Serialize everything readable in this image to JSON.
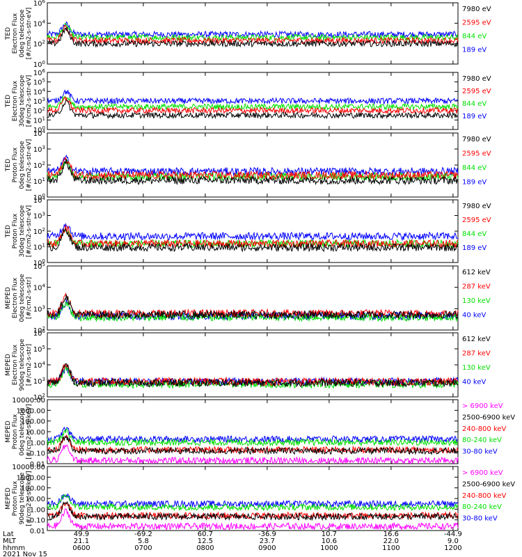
{
  "colors": {
    "blue": "#0000ff",
    "red": "#ff0000",
    "green": "#00e000",
    "black": "#000000",
    "magenta": "#ff00ff"
  },
  "chart_data": [
    {
      "type": "line",
      "ylabel": [
        "TED",
        "Electron Flux",
        "0deg telescope",
        "[#/cm2-s-str-eV]"
      ],
      "yscale": "log",
      "ylim": [
        1,
        1000000
      ],
      "ytick_labels": [
        "10^6",
        "10^4",
        "10^2",
        "10^0"
      ],
      "series": [
        {
          "name": "7980 eV",
          "color": "black",
          "level": 2
        },
        {
          "name": "2595 eV",
          "color": "red",
          "level": 2.3
        },
        {
          "name": "844 eV",
          "color": "green",
          "level": 2.6
        },
        {
          "name": "189 eV",
          "color": "blue",
          "level": 2.9
        }
      ]
    },
    {
      "type": "line",
      "ylabel": [
        "TED",
        "Electron Flux",
        "30deg telescope",
        "[#/cm2-s-str-eV]"
      ],
      "yscale": "log",
      "ylim": [
        1,
        1000000
      ],
      "ytick_labels": [
        "10^6",
        "10^5",
        "10^4",
        "10^3",
        "10^2",
        "10^1",
        "10^0"
      ],
      "series": [
        {
          "name": "7980 eV",
          "color": "black",
          "level": 1.5
        },
        {
          "name": "2595 eV",
          "color": "red",
          "level": 2
        },
        {
          "name": "844 eV",
          "color": "green",
          "level": 2.4
        },
        {
          "name": "189 eV",
          "color": "blue",
          "level": 3
        }
      ]
    },
    {
      "type": "line",
      "ylabel": [
        "TED",
        "Proton Flux",
        "0deg telescope",
        "[#/cm2-s-str-eV]"
      ],
      "yscale": "log",
      "ylim": [
        1,
        100000
      ],
      "ytick_labels": [
        "10^4",
        "10^3",
        "10^2",
        "10^1",
        "10^0"
      ],
      "series": [
        {
          "name": "7980 eV",
          "color": "black",
          "level": 1.3
        },
        {
          "name": "2595 eV",
          "color": "red",
          "level": 1.7
        },
        {
          "name": "844 eV",
          "color": "green",
          "level": 1.6
        },
        {
          "name": "189 eV",
          "color": "blue",
          "level": 2
        }
      ]
    },
    {
      "type": "line",
      "ylabel": [
        "TED",
        "Proton Flux",
        "30deg telescope",
        "[#/cm2-s-str-eV]"
      ],
      "yscale": "log",
      "ylim": [
        1,
        100000
      ],
      "ytick_labels": [
        "10^4",
        "10^3",
        "10^2",
        "10^1",
        "10^0"
      ],
      "series": [
        {
          "name": "7980 eV",
          "color": "black",
          "level": 1.2
        },
        {
          "name": "2595 eV",
          "color": "red",
          "level": 1.5
        },
        {
          "name": "844 eV",
          "color": "green",
          "level": 1.5
        },
        {
          "name": "189 eV",
          "color": "blue",
          "level": 2.1
        }
      ]
    },
    {
      "type": "line",
      "ylabel": [
        "MEPED",
        "Electron Flux",
        "0deg telescope",
        "[#/cm2-s-str]"
      ],
      "yscale": "log",
      "ylim": [
        10,
        1000000
      ],
      "ytick_labels": [
        "10^5",
        "10^4",
        "10^3",
        "10^2"
      ],
      "series": [
        {
          "name": "612 keV",
          "color": "black",
          "level": 2.2
        },
        {
          "name": "287 keV",
          "color": "red",
          "level": 2.3
        },
        {
          "name": "130 keV",
          "color": "green",
          "level": 2
        },
        {
          "name": "40 keV",
          "color": "blue",
          "level": 2.1
        }
      ]
    },
    {
      "type": "line",
      "ylabel": [
        "MEPED",
        "Electron Flux",
        "90deg telescope",
        "[#/cm2-s-str]"
      ],
      "yscale": "log",
      "ylim": [
        10,
        1000000
      ],
      "ytick_labels": [
        "10^6",
        "10^5",
        "10^4",
        "10^3",
        "10^2"
      ],
      "series": [
        {
          "name": "612 keV",
          "color": "black",
          "level": 2.1
        },
        {
          "name": "287 keV",
          "color": "red",
          "level": 2.2
        },
        {
          "name": "130 keV",
          "color": "green",
          "level": 2
        },
        {
          "name": "40 keV",
          "color": "blue",
          "level": 2.2
        }
      ]
    },
    {
      "type": "line",
      "ylabel": [
        "MEPED",
        "Proton Flux",
        "0deg telescope",
        "[#/cm2-s-str-keV]"
      ],
      "yscale": "log",
      "ylim": [
        0.01,
        10000
      ],
      "ytick_labels": [
        "10000.00",
        "1000.00",
        "100.00",
        "10.00",
        "1.00",
        "0.10",
        "0.01"
      ],
      "series": [
        {
          "name": "> 6900 keV",
          "color": "magenta",
          "level": -1.7
        },
        {
          "name": "2500-6900 keV",
          "color": "black",
          "level": -0.8
        },
        {
          "name": "240-800 keV",
          "color": "red",
          "level": -0.7
        },
        {
          "name": "80-240 keV",
          "color": "green",
          "level": 0
        },
        {
          "name": "30-80 keV",
          "color": "blue",
          "level": 0.3
        }
      ]
    },
    {
      "type": "line",
      "ylabel": [
        "MEPED",
        "Proton Flux",
        "90deg telescope",
        "[#/cm2-s-str-keV]"
      ],
      "yscale": "log",
      "ylim": [
        0.01,
        10000
      ],
      "ytick_labels": [
        "10000.00",
        "1000.00",
        "100.00",
        "10.00",
        "1.00",
        "0.10",
        "0.01"
      ],
      "series": [
        {
          "name": "> 6900 keV",
          "color": "magenta",
          "level": -1.6
        },
        {
          "name": "2500-6900 keV",
          "color": "black",
          "level": -0.7
        },
        {
          "name": "240-800 keV",
          "color": "red",
          "level": -0.6
        },
        {
          "name": "80-240 keV",
          "color": "green",
          "level": 0.2
        },
        {
          "name": "30-80 keV",
          "color": "blue",
          "level": 0.5
        }
      ]
    }
  ],
  "x_axis": {
    "row_labels": [
      "Lat",
      "MLT",
      "hhmm"
    ],
    "ticks": [
      {
        "lat": "49.9",
        "mlt": "21.1",
        "hhmm": "0600"
      },
      {
        "lat": "-69.2",
        "mlt": "5.8",
        "hhmm": "0700"
      },
      {
        "lat": "60.7",
        "mlt": "12.5",
        "hhmm": "0800"
      },
      {
        "lat": "-36.9",
        "mlt": "23.7",
        "hhmm": "0900"
      },
      {
        "lat": "10.7",
        "mlt": "10.6",
        "hhmm": "1000"
      },
      {
        "lat": "16.6",
        "mlt": "22.0",
        "hhmm": "1100"
      },
      {
        "lat": "-44.9",
        "mlt": "9.0",
        "hhmm": "1200"
      }
    ],
    "date": "2021 Nov 15"
  },
  "bursts": [
    0.52,
    0.78,
    1.25,
    1.6,
    2.1,
    2.35,
    2.75,
    3.1,
    3.55,
    3.9,
    4.25,
    4.6,
    5.3,
    5.75
  ]
}
